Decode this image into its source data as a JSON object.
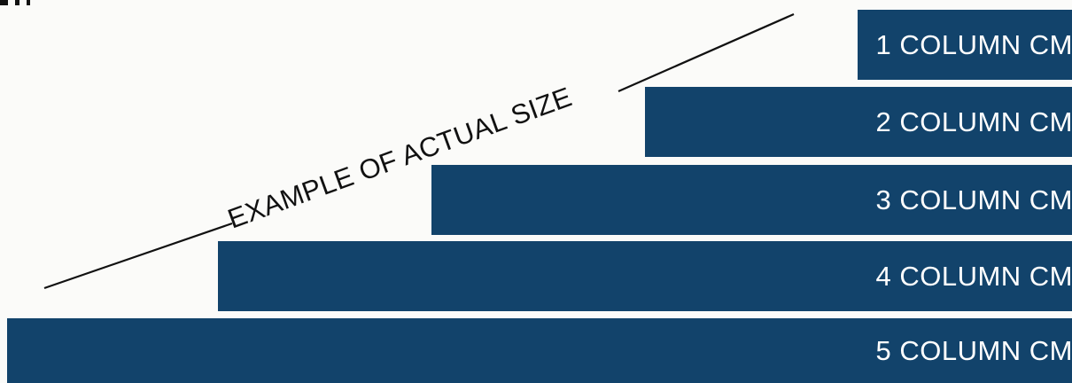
{
  "annotation": {
    "text": "EXAMPLE OF ACTUAL SIZE"
  },
  "bars": [
    {
      "label": "1 COLUMN CM",
      "columns": 1
    },
    {
      "label": "2 COLUMN CM",
      "columns": 2
    },
    {
      "label": "3 COLUMN CM",
      "columns": 3
    },
    {
      "label": "4 COLUMN CM",
      "columns": 4
    },
    {
      "label": "5 COLUMN CM",
      "columns": 5
    }
  ],
  "colors": {
    "background": "#fbfbf9",
    "bar_fill": "#12436b",
    "bar_text": "#ffffff",
    "line_and_text": "#111111"
  }
}
